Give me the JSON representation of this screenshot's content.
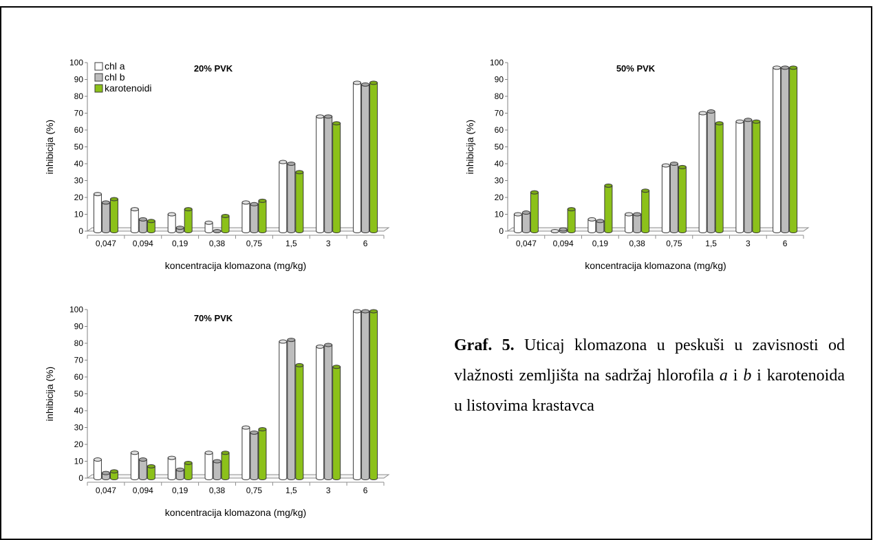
{
  "legend": [
    {
      "label": "chl a",
      "color": "#ffffff"
    },
    {
      "label": "chl b",
      "color": "#bdbdbd"
    },
    {
      "label": "karotenoidi",
      "color": "#8cc11a"
    }
  ],
  "chart_data": [
    {
      "type": "bar",
      "title": "20% PVK",
      "xlabel": "koncentracija klomazona (mg/kg)",
      "ylabel": "inhibicija (%)",
      "ylim": [
        0,
        100
      ],
      "yticks": [
        0,
        10,
        20,
        30,
        40,
        50,
        60,
        70,
        80,
        90,
        100
      ],
      "categories": [
        "0,047",
        "0,094",
        "0,19",
        "0,38",
        "0,75",
        "1,5",
        "3",
        "6"
      ],
      "legend_position": "top-left",
      "series": [
        {
          "name": "chl a",
          "color": "#ffffff",
          "values": [
            22,
            13,
            10,
            5,
            17,
            41,
            68,
            88
          ]
        },
        {
          "name": "chl b",
          "color": "#bdbdbd",
          "values": [
            17,
            7,
            2,
            0,
            16,
            40,
            68,
            87
          ]
        },
        {
          "name": "karotenoidi",
          "color": "#8cc11a",
          "values": [
            19,
            6,
            13,
            9,
            18,
            35,
            64,
            88
          ]
        }
      ]
    },
    {
      "type": "bar",
      "title": "50% PVK",
      "xlabel": "koncentracija klomazona (mg/kg)",
      "ylabel": "inhibicija (%)",
      "ylim": [
        0,
        100
      ],
      "yticks": [
        0,
        10,
        20,
        30,
        40,
        50,
        60,
        70,
        80,
        90,
        100
      ],
      "categories": [
        "0,047",
        "0,094",
        "0,19",
        "0,38",
        "0,75",
        "1,5",
        "3",
        "6"
      ],
      "series": [
        {
          "name": "chl a",
          "color": "#ffffff",
          "values": [
            10,
            0,
            7,
            10,
            39,
            70,
            65,
            97
          ]
        },
        {
          "name": "chl b",
          "color": "#bdbdbd",
          "values": [
            11,
            1,
            6,
            10,
            40,
            71,
            66,
            97
          ]
        },
        {
          "name": "karotenoidi",
          "color": "#8cc11a",
          "values": [
            23,
            13,
            27,
            24,
            38,
            64,
            65,
            97
          ]
        }
      ]
    },
    {
      "type": "bar",
      "title": "70% PVK",
      "xlabel": "koncentracija klomazona (mg/kg)",
      "ylabel": "inhibicija (%)",
      "ylim": [
        0,
        100
      ],
      "yticks": [
        0,
        10,
        20,
        30,
        40,
        50,
        60,
        70,
        80,
        90,
        100
      ],
      "categories": [
        "0,047",
        "0,094",
        "0,19",
        "0,38",
        "0,75",
        "1,5",
        "3",
        "6"
      ],
      "series": [
        {
          "name": "chl a",
          "color": "#ffffff",
          "values": [
            11,
            15,
            12,
            15,
            30,
            81,
            78,
            99
          ]
        },
        {
          "name": "chl b",
          "color": "#bdbdbd",
          "values": [
            3,
            11,
            5,
            10,
            27,
            82,
            79,
            99
          ]
        },
        {
          "name": "karotenoidi",
          "color": "#8cc11a",
          "values": [
            4,
            7,
            9,
            15,
            29,
            67,
            66,
            99
          ]
        }
      ]
    }
  ],
  "caption": {
    "label": "Graf. 5.",
    "text_1": " Uticaj klomazona u peskuši u zavisnosti od vlažnosti zemljišta na sadržaj hlorofila ",
    "italic_a": "a",
    "text_2": " i ",
    "italic_b": "b",
    "text_3": " i karotenoida u listovima krastavca"
  }
}
